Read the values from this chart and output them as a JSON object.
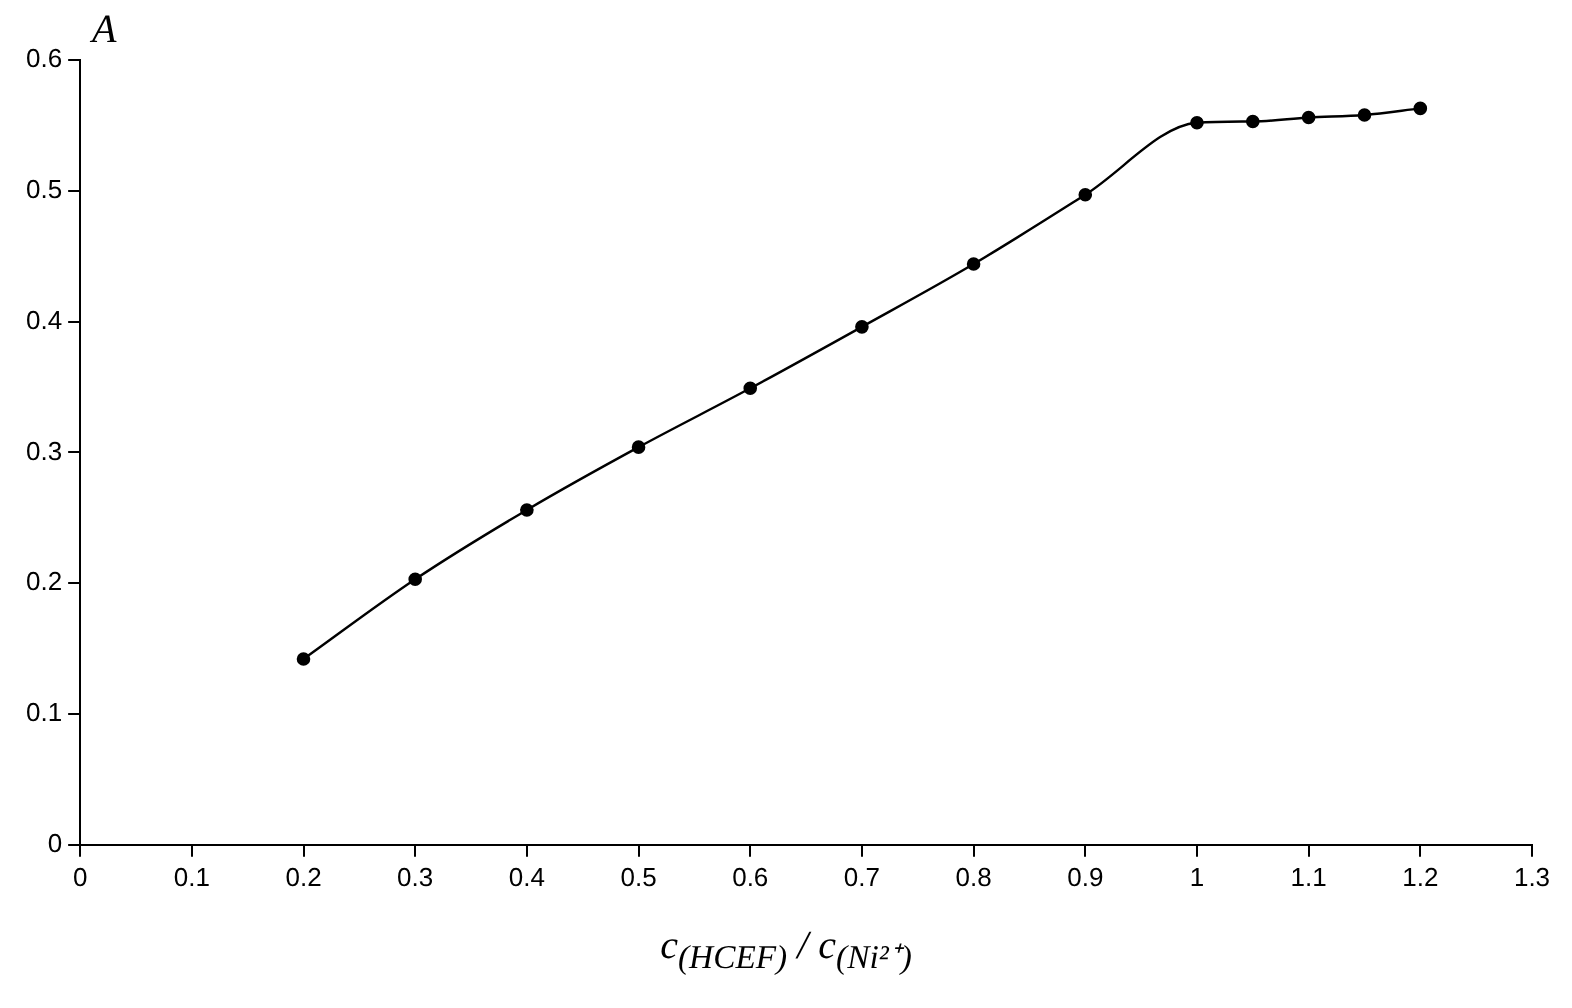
{
  "chart_data": {
    "type": "line",
    "xlabel": "c$_{(HCEF)}$ / c$_{(Ni²⁺)}$",
    "ylabel": "A",
    "x": [
      0.2,
      0.3,
      0.4,
      0.5,
      0.6,
      0.7,
      0.8,
      0.9,
      1.0,
      1.05,
      1.1,
      1.15,
      1.2
    ],
    "series": [
      {
        "color": "#000000",
        "values": [
          0.142,
          0.203,
          0.256,
          0.304,
          0.349,
          0.396,
          0.444,
          0.497,
          0.552,
          0.553,
          0.556,
          0.558,
          0.563
        ]
      }
    ],
    "xlim": [
      0,
      1.3
    ],
    "xticks": [
      0,
      0.1,
      0.2,
      0.3,
      0.4,
      0.5,
      0.6,
      0.7,
      0.8,
      0.9,
      1,
      1.1,
      1.2,
      1.3
    ],
    "ylim": [
      0,
      0.6
    ],
    "yticks": [
      0,
      0.1,
      0.2,
      0.3,
      0.4,
      0.5,
      0.6
    ],
    "grid": false,
    "legend": false,
    "marker": "circle",
    "line_style": "solid"
  }
}
